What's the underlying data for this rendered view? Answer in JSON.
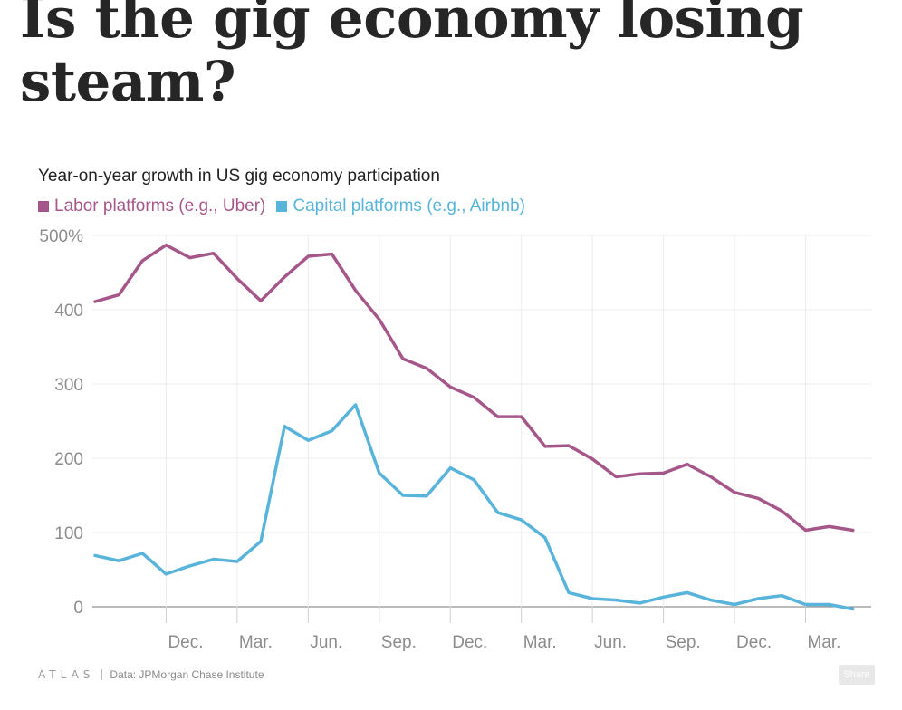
{
  "headline": "Is the gig economy losing steam?",
  "brand": {
    "logo": "ATLAS",
    "source": "Data: JPMorgan Chase Institute"
  },
  "share_label": "Share",
  "chart_data": {
    "type": "line",
    "title": "Year-on-year growth in US gig economy participation",
    "xlabel": "",
    "ylabel": "",
    "ylim": [
      0,
      500
    ],
    "yticks": [
      0,
      100,
      200,
      300,
      400,
      500
    ],
    "ytick_labels": [
      "0",
      "100",
      "200",
      "300",
      "400",
      "500%"
    ],
    "xtick_labels": [
      {
        "label": "Dec.",
        "index": 3
      },
      {
        "label": "Mar.",
        "index": 6
      },
      {
        "label": "Jun.",
        "index": 9
      },
      {
        "label": "Sep.",
        "index": 12
      },
      {
        "label": "Dec.",
        "index": 15
      },
      {
        "label": "Mar.",
        "index": 18
      },
      {
        "label": "Jun.",
        "index": 21
      },
      {
        "label": "Sep.",
        "index": 24
      },
      {
        "label": "Dec.",
        "index": 27
      },
      {
        "label": "Mar.",
        "index": 30
      }
    ],
    "grid": true,
    "legend_position": "top-left",
    "series": [
      {
        "name": "Labor platforms (e.g., Uber)",
        "color": "#a6578a",
        "values": [
          411,
          420,
          466,
          487,
          470,
          476,
          442,
          412,
          444,
          472,
          475,
          426,
          387,
          334,
          321,
          296,
          282,
          256,
          256,
          216,
          217,
          199,
          175,
          179,
          180,
          192,
          175,
          154,
          146,
          129,
          103,
          108,
          103
        ]
      },
      {
        "name": "Capital platforms (e.g., Airbnb)",
        "color": "#58b4da",
        "values": [
          69,
          62,
          72,
          44,
          55,
          64,
          61,
          88,
          243,
          224,
          237,
          272,
          180,
          150,
          149,
          187,
          171,
          127,
          117,
          93,
          19,
          11,
          9,
          5,
          13,
          19,
          9,
          3,
          11,
          15,
          3,
          3,
          -3
        ]
      }
    ]
  }
}
